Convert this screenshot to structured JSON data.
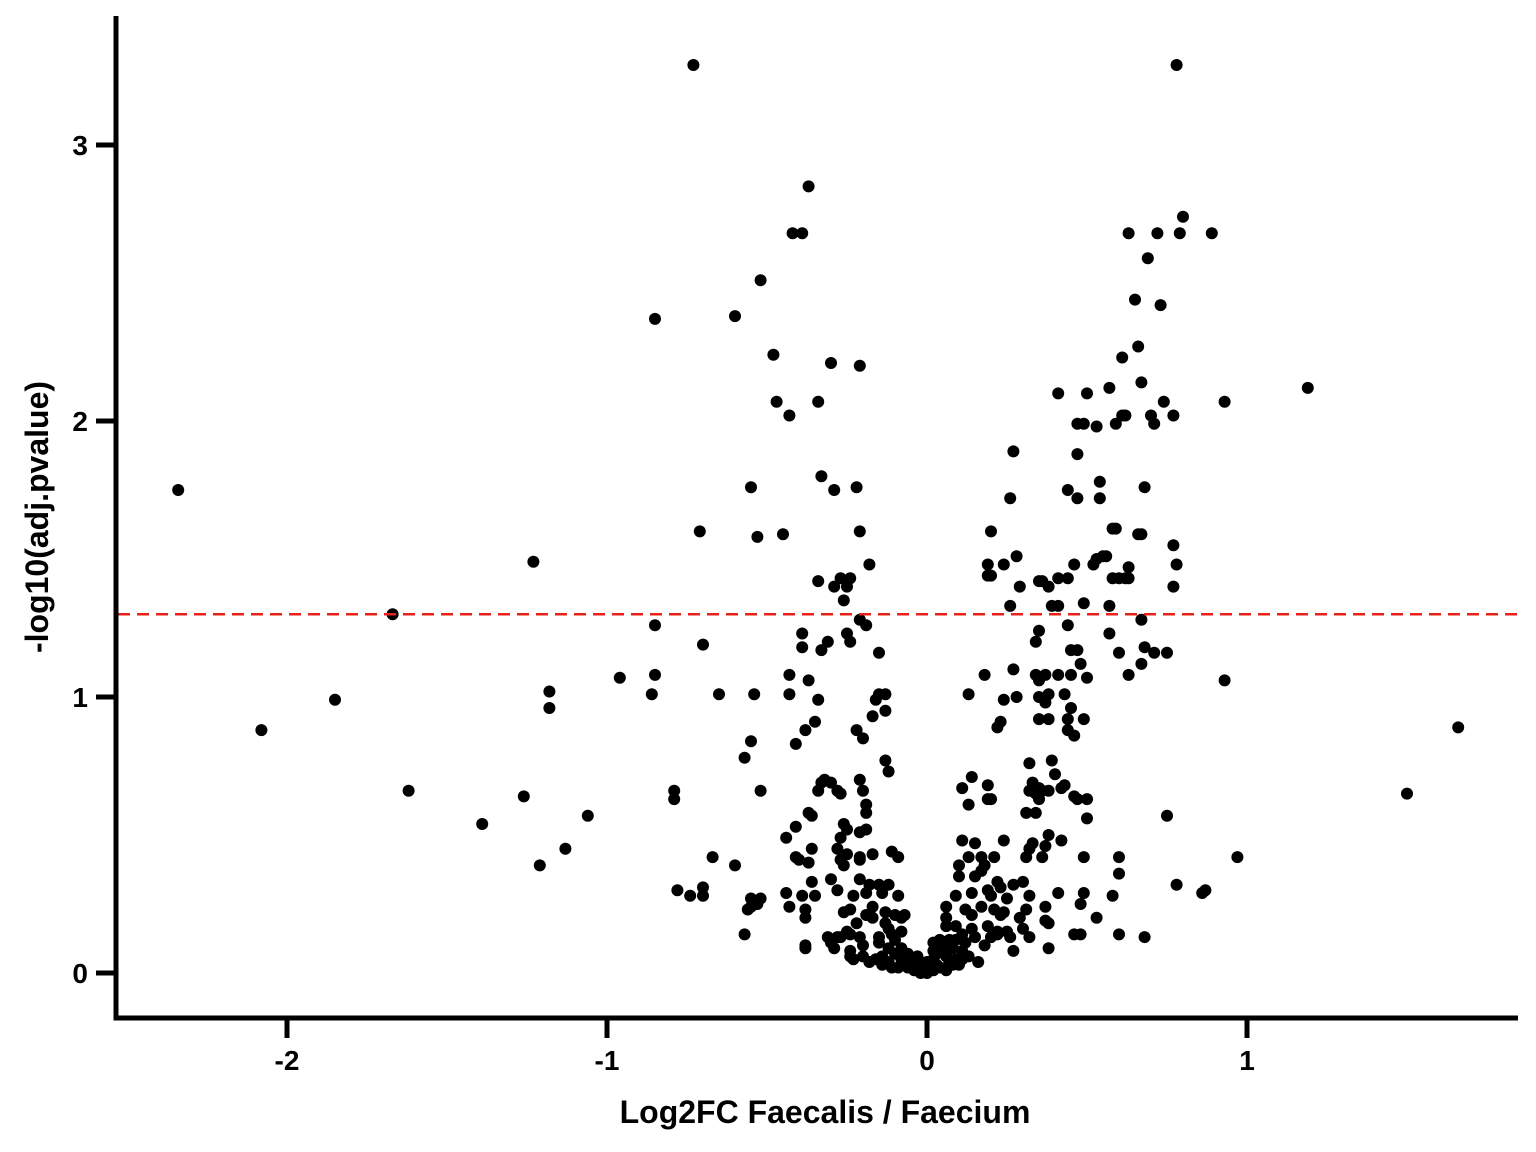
{
  "chart_data": {
    "type": "scatter",
    "title": "",
    "xlabel": "Log2FC Faecalis / Faecium",
    "ylabel": "-log10(adj.pvalue)",
    "xlim": [
      -2.5,
      1.85
    ],
    "ylim": [
      -0.15,
      3.45
    ],
    "xticks": [
      {
        "value": -2,
        "label": "-2"
      },
      {
        "value": -1,
        "label": "-1"
      },
      {
        "value": 0,
        "label": "0"
      },
      {
        "value": 1,
        "label": "1"
      }
    ],
    "yticks": [
      {
        "value": 0,
        "label": "0"
      },
      {
        "value": 1,
        "label": "1"
      },
      {
        "value": 2,
        "label": "2"
      },
      {
        "value": 3,
        "label": "3"
      }
    ],
    "grid": false,
    "legend": "none",
    "threshold": {
      "y": 1.3,
      "color": "#e8201e",
      "style": "dashed"
    },
    "point_color": "#000000",
    "points": [
      [
        -0.73,
        3.29
      ],
      [
        0.78,
        3.29
      ],
      [
        -0.37,
        2.85
      ],
      [
        0.8,
        2.74
      ],
      [
        -0.42,
        2.68
      ],
      [
        -0.39,
        2.68
      ],
      [
        0.63,
        2.68
      ],
      [
        0.72,
        2.68
      ],
      [
        0.79,
        2.68
      ],
      [
        0.89,
        2.68
      ],
      [
        0.69,
        2.59
      ],
      [
        -0.52,
        2.51
      ],
      [
        0.65,
        2.44
      ],
      [
        0.73,
        2.42
      ],
      [
        -0.6,
        2.38
      ],
      [
        -0.85,
        2.37
      ],
      [
        0.66,
        2.27
      ],
      [
        -0.48,
        2.24
      ],
      [
        0.61,
        2.23
      ],
      [
        -0.3,
        2.21
      ],
      [
        -0.21,
        2.2
      ],
      [
        0.67,
        2.14
      ],
      [
        0.57,
        2.12
      ],
      [
        1.19,
        2.12
      ],
      [
        0.41,
        2.1
      ],
      [
        0.5,
        2.1
      ],
      [
        -0.47,
        2.07
      ],
      [
        -0.34,
        2.07
      ],
      [
        0.74,
        2.07
      ],
      [
        0.93,
        2.07
      ],
      [
        -0.43,
        2.02
      ],
      [
        0.61,
        2.02
      ],
      [
        0.62,
        2.02
      ],
      [
        0.7,
        2.02
      ],
      [
        0.77,
        2.02
      ],
      [
        0.47,
        1.99
      ],
      [
        0.49,
        1.99
      ],
      [
        0.59,
        1.99
      ],
      [
        0.71,
        1.99
      ],
      [
        0.53,
        1.98
      ],
      [
        0.27,
        1.89
      ],
      [
        0.47,
        1.88
      ],
      [
        -0.33,
        1.8
      ],
      [
        0.54,
        1.78
      ],
      [
        -2.34,
        1.75
      ],
      [
        -0.29,
        1.75
      ],
      [
        -0.55,
        1.76
      ],
      [
        -0.22,
        1.76
      ],
      [
        0.44,
        1.75
      ],
      [
        0.68,
        1.76
      ],
      [
        0.26,
        1.72
      ],
      [
        0.47,
        1.72
      ],
      [
        0.54,
        1.72
      ],
      [
        -0.71,
        1.6
      ],
      [
        -0.45,
        1.59
      ],
      [
        -0.21,
        1.6
      ],
      [
        0.2,
        1.6
      ],
      [
        0.58,
        1.61
      ],
      [
        0.59,
        1.61
      ],
      [
        0.66,
        1.59
      ],
      [
        0.67,
        1.59
      ],
      [
        -0.53,
        1.58
      ],
      [
        0.77,
        1.55
      ],
      [
        -1.23,
        1.49
      ],
      [
        0.28,
        1.51
      ],
      [
        0.53,
        1.5
      ],
      [
        0.55,
        1.51
      ],
      [
        0.56,
        1.51
      ],
      [
        0.52,
        1.48
      ],
      [
        -0.18,
        1.48
      ],
      [
        0.19,
        1.48
      ],
      [
        0.24,
        1.48
      ],
      [
        0.46,
        1.48
      ],
      [
        0.63,
        1.47
      ],
      [
        0.78,
        1.48
      ],
      [
        0.19,
        1.44
      ],
      [
        0.2,
        1.44
      ],
      [
        -0.27,
        1.43
      ],
      [
        -0.24,
        1.43
      ],
      [
        0.35,
        1.42
      ],
      [
        0.36,
        1.42
      ],
      [
        0.41,
        1.43
      ],
      [
        0.44,
        1.43
      ],
      [
        0.58,
        1.43
      ],
      [
        0.6,
        1.43
      ],
      [
        0.62,
        1.43
      ],
      [
        0.63,
        1.43
      ],
      [
        -0.34,
        1.42
      ],
      [
        -0.25,
        1.4
      ],
      [
        0.29,
        1.4
      ],
      [
        -0.29,
        1.4
      ],
      [
        0.38,
        1.4
      ],
      [
        0.77,
        1.4
      ],
      [
        -0.26,
        1.35
      ],
      [
        0.26,
        1.33
      ],
      [
        0.39,
        1.33
      ],
      [
        0.41,
        1.33
      ],
      [
        0.49,
        1.34
      ],
      [
        0.57,
        1.33
      ],
      [
        -1.67,
        1.3
      ],
      [
        -0.21,
        1.28
      ],
      [
        0.67,
        1.28
      ],
      [
        -0.85,
        1.26
      ],
      [
        -0.19,
        1.26
      ],
      [
        0.44,
        1.26
      ],
      [
        -0.25,
        1.23
      ],
      [
        0.35,
        1.24
      ],
      [
        -0.39,
        1.23
      ],
      [
        0.57,
        1.23
      ],
      [
        -0.24,
        1.2
      ],
      [
        0.34,
        1.2
      ],
      [
        -0.31,
        1.2
      ],
      [
        -0.7,
        1.19
      ],
      [
        -0.39,
        1.18
      ],
      [
        -0.33,
        1.17
      ],
      [
        0.45,
        1.17
      ],
      [
        0.47,
        1.17
      ],
      [
        0.6,
        1.16
      ],
      [
        0.68,
        1.18
      ],
      [
        0.75,
        1.16
      ],
      [
        0.71,
        1.16
      ],
      [
        -0.15,
        1.16
      ],
      [
        0.48,
        1.12
      ],
      [
        0.67,
        1.12
      ],
      [
        -0.96,
        1.07
      ],
      [
        -0.43,
        1.08
      ],
      [
        0.18,
        1.08
      ],
      [
        0.27,
        1.1
      ],
      [
        0.34,
        1.08
      ],
      [
        0.37,
        1.08
      ],
      [
        0.41,
        1.08
      ],
      [
        0.45,
        1.08
      ],
      [
        0.5,
        1.07
      ],
      [
        0.63,
        1.08
      ],
      [
        0.35,
        1.06
      ],
      [
        -0.37,
        1.06
      ],
      [
        -0.85,
        1.08
      ],
      [
        0.93,
        1.06
      ],
      [
        -1.18,
        1.02
      ],
      [
        -0.86,
        1.01
      ],
      [
        -0.65,
        1.01
      ],
      [
        -0.54,
        1.01
      ],
      [
        -0.43,
        1.01
      ],
      [
        -0.15,
        1.01
      ],
      [
        -0.13,
        1.01
      ],
      [
        0.13,
        1.01
      ],
      [
        0.24,
        0.99
      ],
      [
        0.28,
        1.0
      ],
      [
        0.35,
        1.0
      ],
      [
        0.38,
        1.01
      ],
      [
        0.43,
        1.01
      ],
      [
        -1.85,
        0.99
      ],
      [
        -0.34,
        0.99
      ],
      [
        -0.16,
        0.99
      ],
      [
        0.37,
        0.98
      ],
      [
        0.45,
        0.96
      ],
      [
        -1.18,
        0.96
      ],
      [
        -0.13,
        0.95
      ],
      [
        -0.17,
        0.93
      ],
      [
        0.23,
        0.91
      ],
      [
        0.35,
        0.92
      ],
      [
        0.38,
        0.92
      ],
      [
        0.44,
        0.92
      ],
      [
        0.49,
        0.92
      ],
      [
        -0.35,
        0.91
      ],
      [
        0.22,
        0.89
      ],
      [
        -0.38,
        0.88
      ],
      [
        -0.22,
        0.88
      ],
      [
        0.44,
        0.88
      ],
      [
        0.46,
        0.86
      ],
      [
        -2.08,
        0.88
      ],
      [
        1.66,
        0.89
      ],
      [
        -0.2,
        0.85
      ],
      [
        -0.55,
        0.84
      ],
      [
        -0.41,
        0.83
      ],
      [
        -0.57,
        0.78
      ],
      [
        -0.13,
        0.77
      ],
      [
        0.32,
        0.76
      ],
      [
        0.39,
        0.77
      ],
      [
        -0.12,
        0.73
      ],
      [
        0.14,
        0.71
      ],
      [
        0.4,
        0.72
      ],
      [
        -0.32,
        0.7
      ],
      [
        -0.33,
        0.69
      ],
      [
        -0.21,
        0.7
      ],
      [
        0.33,
        0.69
      ],
      [
        -0.3,
        0.69
      ],
      [
        0.11,
        0.67
      ],
      [
        0.19,
        0.68
      ],
      [
        0.35,
        0.67
      ],
      [
        0.36,
        0.66
      ],
      [
        0.38,
        0.66
      ],
      [
        0.42,
        0.67
      ],
      [
        0.43,
        0.68
      ],
      [
        0.34,
        0.65
      ],
      [
        0.32,
        0.66
      ],
      [
        -1.62,
        0.66
      ],
      [
        -0.79,
        0.66
      ],
      [
        -0.52,
        0.66
      ],
      [
        -0.34,
        0.66
      ],
      [
        -0.28,
        0.66
      ],
      [
        -0.27,
        0.65
      ],
      [
        -0.2,
        0.66
      ],
      [
        1.5,
        0.65
      ],
      [
        -1.26,
        0.64
      ],
      [
        -0.79,
        0.63
      ],
      [
        0.19,
        0.63
      ],
      [
        0.2,
        0.63
      ],
      [
        0.35,
        0.63
      ],
      [
        0.46,
        0.64
      ],
      [
        0.47,
        0.63
      ],
      [
        0.5,
        0.63
      ],
      [
        -0.19,
        0.61
      ],
      [
        0.13,
        0.61
      ],
      [
        -0.37,
        0.58
      ],
      [
        -0.36,
        0.57
      ],
      [
        -1.06,
        0.57
      ],
      [
        -0.19,
        0.58
      ],
      [
        0.31,
        0.58
      ],
      [
        0.34,
        0.58
      ],
      [
        0.5,
        0.56
      ],
      [
        0.75,
        0.57
      ],
      [
        -1.39,
        0.54
      ],
      [
        -0.41,
        0.53
      ],
      [
        -0.26,
        0.54
      ],
      [
        -0.25,
        0.52
      ],
      [
        -0.21,
        0.51
      ],
      [
        -0.19,
        0.52
      ],
      [
        -0.44,
        0.49
      ],
      [
        -0.27,
        0.49
      ],
      [
        0.38,
        0.5
      ],
      [
        0.42,
        0.48
      ],
      [
        0.11,
        0.48
      ],
      [
        0.15,
        0.47
      ],
      [
        0.24,
        0.48
      ],
      [
        0.33,
        0.47
      ],
      [
        0.32,
        0.45
      ],
      [
        0.37,
        0.46
      ],
      [
        -1.13,
        0.45
      ],
      [
        -0.36,
        0.45
      ],
      [
        -0.28,
        0.45
      ],
      [
        -0.25,
        0.43
      ],
      [
        -0.17,
        0.43
      ],
      [
        -0.21,
        0.42
      ],
      [
        -0.11,
        0.44
      ],
      [
        -0.41,
        0.42
      ],
      [
        -0.4,
        0.41
      ],
      [
        0.13,
        0.42
      ],
      [
        0.17,
        0.42
      ],
      [
        0.21,
        0.42
      ],
      [
        0.31,
        0.42
      ],
      [
        0.36,
        0.42
      ],
      [
        0.49,
        0.42
      ],
      [
        0.6,
        0.42
      ],
      [
        0.97,
        0.42
      ],
      [
        -0.67,
        0.42
      ],
      [
        -0.6,
        0.39
      ],
      [
        -0.37,
        0.4
      ],
      [
        -0.26,
        0.39
      ],
      [
        -0.27,
        0.41
      ],
      [
        -0.21,
        0.41
      ],
      [
        -0.09,
        0.42
      ],
      [
        0.1,
        0.39
      ],
      [
        0.18,
        0.39
      ],
      [
        -1.21,
        0.39
      ],
      [
        0.17,
        0.37
      ],
      [
        0.15,
        0.35
      ],
      [
        0.6,
        0.36
      ],
      [
        0.1,
        0.35
      ],
      [
        -0.21,
        0.34
      ],
      [
        -0.3,
        0.34
      ],
      [
        -0.36,
        0.33
      ],
      [
        -0.18,
        0.32
      ],
      [
        -0.15,
        0.32
      ],
      [
        -0.12,
        0.32
      ],
      [
        0.22,
        0.33
      ],
      [
        0.27,
        0.32
      ],
      [
        0.23,
        0.31
      ],
      [
        0.3,
        0.33
      ],
      [
        -0.7,
        0.31
      ],
      [
        0.78,
        0.32
      ],
      [
        -0.28,
        0.3
      ],
      [
        -0.78,
        0.3
      ],
      [
        -0.74,
        0.28
      ],
      [
        -0.7,
        0.28
      ],
      [
        -0.55,
        0.27
      ],
      [
        -0.52,
        0.27
      ],
      [
        -0.44,
        0.29
      ],
      [
        -0.39,
        0.28
      ],
      [
        -0.35,
        0.28
      ],
      [
        -0.23,
        0.28
      ],
      [
        -0.19,
        0.29
      ],
      [
        -0.14,
        0.29
      ],
      [
        -0.09,
        0.28
      ],
      [
        0.09,
        0.28
      ],
      [
        0.14,
        0.29
      ],
      [
        0.19,
        0.3
      ],
      [
        0.2,
        0.28
      ],
      [
        0.25,
        0.27
      ],
      [
        0.32,
        0.28
      ],
      [
        0.41,
        0.29
      ],
      [
        0.49,
        0.29
      ],
      [
        0.58,
        0.28
      ],
      [
        0.86,
        0.29
      ],
      [
        0.87,
        0.3
      ],
      [
        -0.55,
        0.24
      ],
      [
        -0.53,
        0.25
      ],
      [
        -0.43,
        0.24
      ],
      [
        -0.38,
        0.23
      ],
      [
        -0.24,
        0.23
      ],
      [
        -0.17,
        0.24
      ],
      [
        -0.13,
        0.22
      ],
      [
        0.06,
        0.24
      ],
      [
        0.12,
        0.23
      ],
      [
        0.17,
        0.24
      ],
      [
        0.21,
        0.23
      ],
      [
        0.31,
        0.23
      ],
      [
        0.37,
        0.24
      ],
      [
        0.48,
        0.25
      ],
      [
        -0.56,
        0.23
      ],
      [
        -0.26,
        0.22
      ],
      [
        -0.19,
        0.21
      ],
      [
        -0.1,
        0.21
      ],
      [
        -0.07,
        0.21
      ],
      [
        0.14,
        0.21
      ],
      [
        0.23,
        0.21
      ],
      [
        0.24,
        0.22
      ],
      [
        -0.38,
        0.2
      ],
      [
        -0.17,
        0.2
      ],
      [
        -0.08,
        0.2
      ],
      [
        0.06,
        0.2
      ],
      [
        0.29,
        0.2
      ],
      [
        0.37,
        0.19
      ],
      [
        0.53,
        0.2
      ],
      [
        -0.22,
        0.18
      ],
      [
        -0.13,
        0.18
      ],
      [
        0.06,
        0.17
      ],
      [
        0.09,
        0.17
      ],
      [
        0.14,
        0.16
      ],
      [
        0.19,
        0.17
      ],
      [
        0.3,
        0.16
      ],
      [
        0.38,
        0.18
      ],
      [
        -0.12,
        0.16
      ],
      [
        -0.25,
        0.15
      ],
      [
        -0.08,
        0.15
      ],
      [
        0.22,
        0.15
      ],
      [
        0.25,
        0.15
      ],
      [
        -0.57,
        0.14
      ],
      [
        -0.31,
        0.13
      ],
      [
        -0.28,
        0.13
      ],
      [
        -0.27,
        0.13
      ],
      [
        -0.24,
        0.14
      ],
      [
        -0.21,
        0.13
      ],
      [
        -0.15,
        0.13
      ],
      [
        -0.11,
        0.14
      ],
      [
        0.11,
        0.14
      ],
      [
        0.15,
        0.13
      ],
      [
        0.2,
        0.13
      ],
      [
        0.22,
        0.14
      ],
      [
        0.26,
        0.13
      ],
      [
        0.32,
        0.13
      ],
      [
        0.46,
        0.14
      ],
      [
        0.48,
        0.14
      ],
      [
        0.6,
        0.14
      ],
      [
        0.68,
        0.13
      ],
      [
        -0.38,
        0.1
      ],
      [
        -0.3,
        0.11
      ],
      [
        -0.2,
        0.1
      ],
      [
        -0.15,
        0.11
      ],
      [
        -0.1,
        0.12
      ],
      [
        0.02,
        0.11
      ],
      [
        0.04,
        0.12
      ],
      [
        0.07,
        0.12
      ],
      [
        0.09,
        0.12
      ],
      [
        0.12,
        0.11
      ],
      [
        0.18,
        0.1
      ],
      [
        0.38,
        0.09
      ],
      [
        -0.38,
        0.09
      ],
      [
        -0.29,
        0.09
      ],
      [
        -0.24,
        0.08
      ],
      [
        -0.12,
        0.09
      ],
      [
        -0.08,
        0.09
      ],
      [
        0.02,
        0.08
      ],
      [
        0.05,
        0.09
      ],
      [
        0.08,
        0.09
      ],
      [
        0.11,
        0.08
      ],
      [
        0.27,
        0.08
      ],
      [
        -0.24,
        0.06
      ],
      [
        -0.2,
        0.06
      ],
      [
        -0.14,
        0.06
      ],
      [
        -0.1,
        0.07
      ],
      [
        -0.06,
        0.07
      ],
      [
        -0.03,
        0.06
      ],
      [
        0.03,
        0.07
      ],
      [
        0.06,
        0.06
      ],
      [
        0.11,
        0.05
      ],
      [
        0.13,
        0.06
      ],
      [
        -0.23,
        0.05
      ],
      [
        -0.16,
        0.05
      ],
      [
        -0.12,
        0.04
      ],
      [
        -0.08,
        0.05
      ],
      [
        -0.05,
        0.04
      ],
      [
        0.02,
        0.05
      ],
      [
        0.07,
        0.04
      ],
      [
        0.09,
        0.05
      ],
      [
        -0.18,
        0.04
      ],
      [
        -0.07,
        0.03
      ],
      [
        -0.04,
        0.03
      ],
      [
        -0.02,
        0.04
      ],
      [
        0.0,
        0.04
      ],
      [
        0.03,
        0.03
      ],
      [
        0.08,
        0.03
      ],
      [
        -0.06,
        0.02
      ],
      [
        -0.03,
        0.02
      ],
      [
        0.01,
        0.02
      ],
      [
        0.04,
        0.02
      ],
      [
        -0.01,
        0.01
      ],
      [
        0.02,
        0.01
      ],
      [
        0.0,
        0.0
      ],
      [
        -0.02,
        0.0
      ],
      [
        0.06,
        0.01
      ],
      [
        -0.09,
        0.02
      ],
      [
        0.1,
        0.03
      ],
      [
        -0.14,
        0.03
      ],
      [
        0.16,
        0.04
      ],
      [
        -0.11,
        0.02
      ],
      [
        0.0,
        0.02
      ],
      [
        -0.04,
        0.01
      ]
    ]
  }
}
